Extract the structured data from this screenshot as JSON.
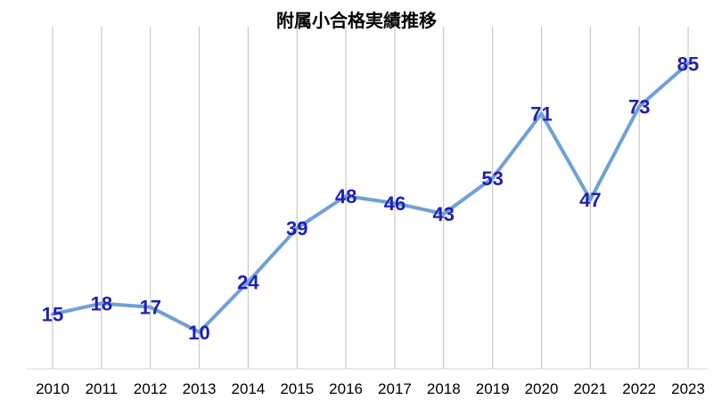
{
  "chart_data": {
    "type": "line",
    "title": "附属小合格実績推移",
    "xlabel": "",
    "ylabel": "",
    "categories": [
      "2010",
      "2011",
      "2012",
      "2013",
      "2014",
      "2015",
      "2016",
      "2017",
      "2018",
      "2019",
      "2020",
      "2021",
      "2022",
      "2023"
    ],
    "series": [
      {
        "values": [
          15,
          18,
          17,
          10,
          24,
          39,
          48,
          46,
          43,
          53,
          71,
          47,
          73,
          85
        ]
      }
    ],
    "ylim": [
      0,
      100
    ],
    "grid": "vertical",
    "legend": "none",
    "colors": {
      "line": "#6fa0d8",
      "label": "#1f1fb4",
      "grid": "#bfbfbf",
      "axis": "#d9d9d9"
    }
  }
}
